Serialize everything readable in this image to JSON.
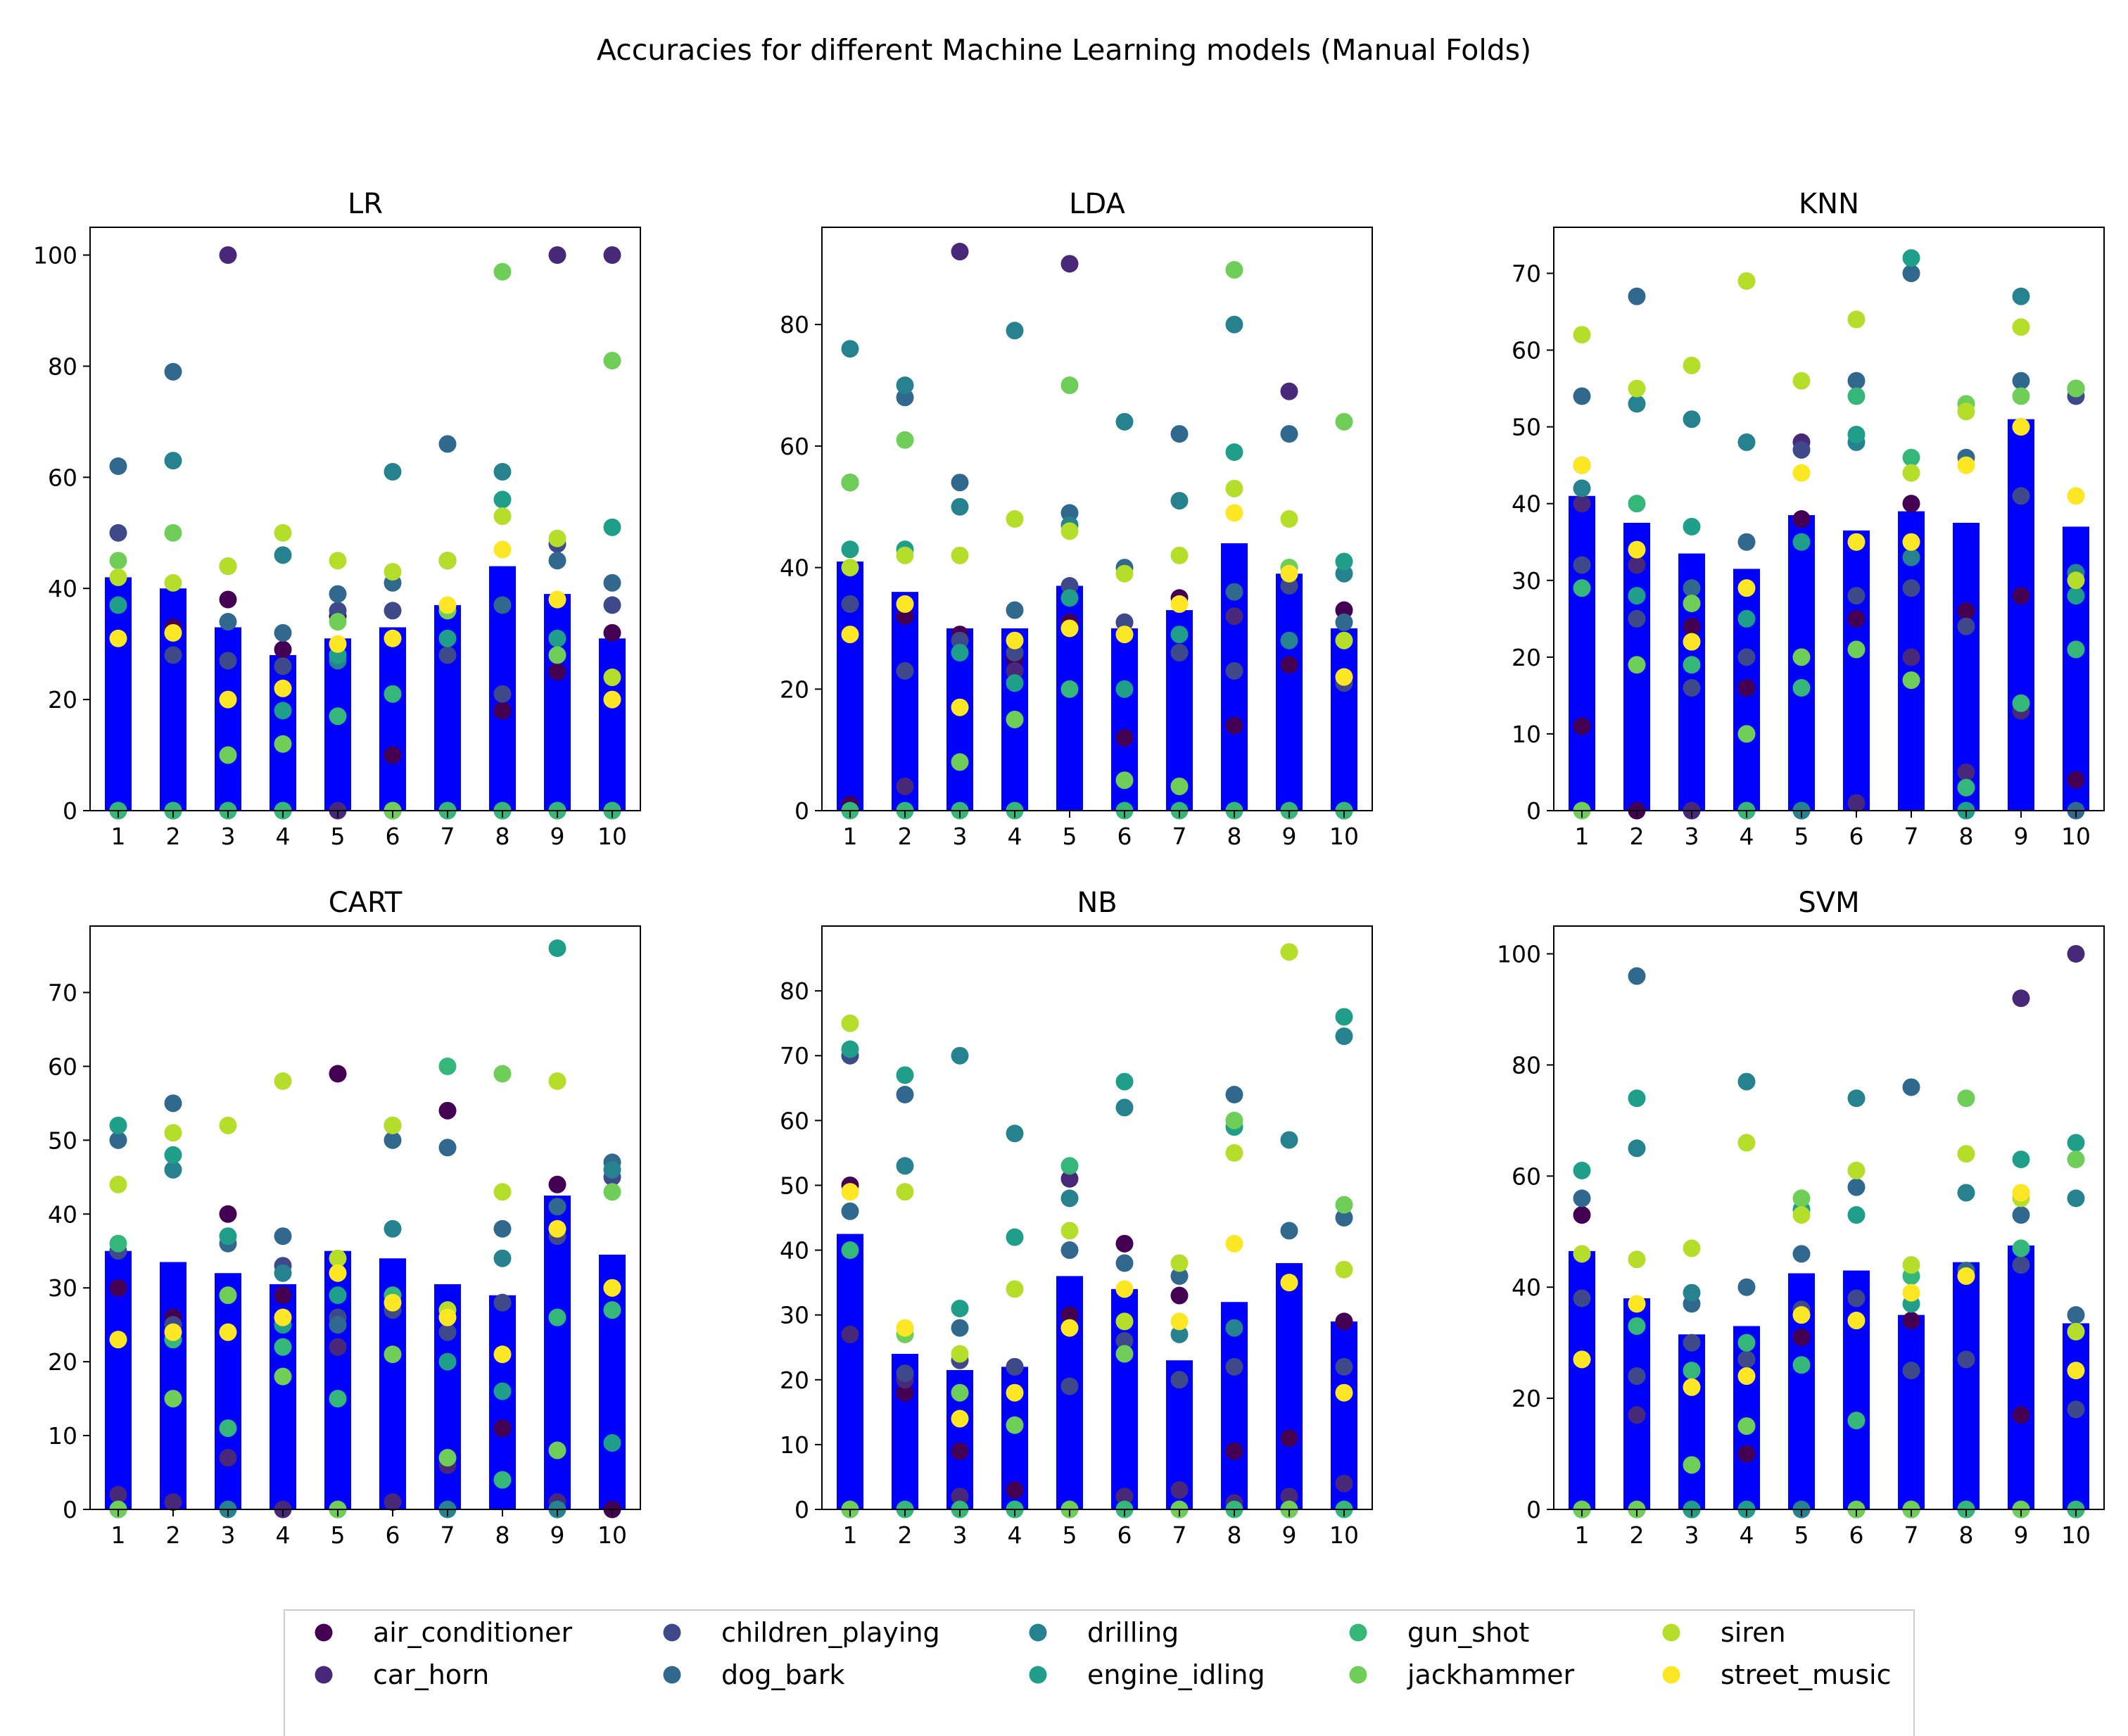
{
  "title": "Accuracies for different Machine Learning models (Manual Folds)",
  "colors": {
    "bar": "#0000ff",
    "air_conditioner": "#440154",
    "car_horn": "#482878",
    "children_playing": "#3e4989",
    "dog_bark": "#31688e",
    "drilling": "#26828e",
    "engine_idling": "#1f9e89",
    "gun_shot": "#35b779",
    "jackhammer": "#6ece58",
    "siren": "#b5de2b",
    "street_music": "#fde725"
  },
  "legend": [
    {
      "key": "air_conditioner",
      "label": "air_conditioner"
    },
    {
      "key": "car_horn",
      "label": "car_horn"
    },
    {
      "key": "children_playing",
      "label": "children_playing"
    },
    {
      "key": "dog_bark",
      "label": "dog_bark"
    },
    {
      "key": "drilling",
      "label": "drilling"
    },
    {
      "key": "engine_idling",
      "label": "engine_idling"
    },
    {
      "key": "gun_shot",
      "label": "gun_shot"
    },
    {
      "key": "jackhammer",
      "label": "jackhammer"
    },
    {
      "key": "siren",
      "label": "siren"
    },
    {
      "key": "street_music",
      "label": "street_music"
    }
  ],
  "chart_data": [
    {
      "type": "bar",
      "title": "LR",
      "categories": [
        "1",
        "2",
        "3",
        "4",
        "5",
        "6",
        "7",
        "8",
        "9",
        "10"
      ],
      "ylim": [
        0,
        105
      ],
      "yticks": [
        0,
        20,
        40,
        60,
        80,
        100
      ],
      "values": [
        42,
        40,
        33,
        28,
        31,
        33,
        37,
        44,
        39,
        31
      ],
      "points": {
        "air_conditioner": [
          37,
          33,
          38,
          29,
          35,
          10,
          45,
          18,
          25,
          32
        ],
        "car_horn": [
          0,
          0,
          100,
          0,
          0,
          0,
          0,
          0,
          100,
          100
        ],
        "children_playing": [
          50,
          28,
          27,
          26,
          36,
          36,
          28,
          21,
          48,
          37
        ],
        "dog_bark": [
          62,
          79,
          34,
          32,
          39,
          41,
          66,
          37,
          45,
          41
        ],
        "drilling": [
          0,
          63,
          44,
          46,
          27,
          61,
          0,
          61,
          0,
          0
        ],
        "engine_idling": [
          37,
          0,
          0,
          18,
          28,
          0,
          31,
          56,
          31,
          51
        ],
        "gun_shot": [
          0,
          0,
          0,
          0,
          17,
          21,
          0,
          0,
          0,
          0
        ],
        "jackhammer": [
          45,
          50,
          10,
          12,
          34,
          0,
          36,
          97,
          28,
          81
        ],
        "siren": [
          42,
          41,
          44,
          50,
          45,
          43,
          45,
          53,
          49,
          24
        ],
        "street_music": [
          31,
          32,
          20,
          22,
          30,
          31,
          37,
          47,
          38,
          20
        ]
      }
    },
    {
      "type": "bar",
      "title": "LDA",
      "categories": [
        "1",
        "2",
        "3",
        "4",
        "5",
        "6",
        "7",
        "8",
        "9",
        "10"
      ],
      "ylim": [
        0,
        96
      ],
      "yticks": [
        0,
        20,
        40,
        60,
        80
      ],
      "values": [
        41,
        36,
        30,
        30,
        37,
        30,
        33,
        44,
        39,
        30
      ],
      "points": {
        "air_conditioner": [
          1,
          32,
          29,
          25,
          31,
          12,
          35,
          14,
          24,
          33
        ],
        "car_horn": [
          54,
          4,
          92,
          23,
          90,
          31,
          26,
          32,
          69,
          0
        ],
        "children_playing": [
          34,
          23,
          28,
          26,
          37,
          31,
          26,
          23,
          37,
          21
        ],
        "dog_bark": [
          54,
          68,
          54,
          33,
          49,
          40,
          62,
          36,
          62,
          31
        ],
        "drilling": [
          76,
          70,
          50,
          79,
          47,
          64,
          51,
          80,
          28,
          39
        ],
        "engine_idling": [
          43,
          43,
          26,
          21,
          35,
          20,
          29,
          59,
          40,
          41
        ],
        "gun_shot": [
          0,
          0,
          0,
          0,
          20,
          0,
          0,
          0,
          0,
          0
        ],
        "jackhammer": [
          54,
          61,
          8,
          15,
          70,
          5,
          4,
          89,
          40,
          64
        ],
        "siren": [
          40,
          42,
          42,
          48,
          46,
          39,
          42,
          53,
          48,
          28
        ],
        "street_music": [
          29,
          34,
          17,
          28,
          30,
          29,
          34,
          49,
          39,
          22
        ]
      }
    },
    {
      "type": "bar",
      "title": "KNN",
      "categories": [
        "1",
        "2",
        "3",
        "4",
        "5",
        "6",
        "7",
        "8",
        "9",
        "10"
      ],
      "ylim": [
        0,
        76
      ],
      "yticks": [
        0,
        10,
        20,
        30,
        40,
        50,
        60,
        70
      ],
      "values": [
        41,
        37.5,
        33.5,
        31.5,
        38.5,
        36.5,
        39,
        37.5,
        51,
        37
      ],
      "points": {
        "air_conditioner": [
          11,
          0,
          24,
          16,
          38,
          25,
          40,
          26,
          28,
          4
        ],
        "car_horn": [
          40,
          32,
          0,
          0,
          48,
          1,
          20,
          5,
          13,
          55
        ],
        "children_playing": [
          32,
          25,
          16,
          20,
          47,
          28,
          29,
          24,
          41,
          54
        ],
        "dog_bark": [
          54,
          67,
          29,
          35,
          0,
          56,
          70,
          46,
          56,
          0
        ],
        "drilling": [
          42,
          53,
          51,
          48,
          0,
          48,
          33,
          0,
          67,
          31
        ],
        "engine_idling": [
          45,
          28,
          37,
          25,
          35,
          49,
          72,
          0,
          50,
          28
        ],
        "gun_shot": [
          29,
          40,
          19,
          0,
          16,
          54,
          46,
          3,
          14,
          21
        ],
        "jackhammer": [
          0,
          19,
          27,
          10,
          20,
          21,
          17,
          53,
          54,
          55
        ],
        "siren": [
          62,
          55,
          58,
          69,
          56,
          64,
          44,
          52,
          63,
          30
        ],
        "street_music": [
          45,
          34,
          22,
          29,
          44,
          35,
          35,
          45,
          50,
          41
        ]
      }
    },
    {
      "type": "bar",
      "title": "CART",
      "categories": [
        "1",
        "2",
        "3",
        "4",
        "5",
        "6",
        "7",
        "8",
        "9",
        "10"
      ],
      "ylim": [
        0,
        79
      ],
      "yticks": [
        0,
        10,
        20,
        30,
        40,
        50,
        60,
        70
      ],
      "values": [
        35,
        33.5,
        32,
        30.5,
        35,
        34,
        30.5,
        29,
        42.5,
        34.5
      ],
      "points": {
        "air_conditioner": [
          30,
          26,
          40,
          29,
          59,
          21,
          54,
          11,
          44,
          0
        ],
        "car_horn": [
          2,
          1,
          7,
          0,
          22,
          1,
          6,
          28,
          1,
          30
        ],
        "children_playing": [
          35,
          25,
          29,
          33,
          26,
          27,
          24,
          28,
          37,
          45
        ],
        "dog_bark": [
          50,
          55,
          36,
          37,
          25,
          50,
          49,
          38,
          41,
          47
        ],
        "drilling": [
          0,
          46,
          0,
          32,
          0,
          38,
          0,
          34,
          0,
          46
        ],
        "engine_idling": [
          52,
          48,
          37,
          25,
          29,
          52,
          20,
          16,
          76,
          9
        ],
        "gun_shot": [
          36,
          23,
          11,
          22,
          15,
          29,
          60,
          4,
          26,
          27
        ],
        "jackhammer": [
          0,
          15,
          29,
          18,
          0,
          21,
          7,
          59,
          8,
          43
        ],
        "siren": [
          44,
          51,
          52,
          58,
          34,
          52,
          27,
          43,
          58,
          30
        ],
        "street_music": [
          23,
          24,
          24,
          26,
          32,
          28,
          26,
          21,
          38,
          30
        ]
      }
    },
    {
      "type": "bar",
      "title": "NB",
      "categories": [
        "1",
        "2",
        "3",
        "4",
        "5",
        "6",
        "7",
        "8",
        "9",
        "10"
      ],
      "ylim": [
        0,
        90
      ],
      "yticks": [
        0,
        10,
        20,
        30,
        40,
        50,
        60,
        70,
        80
      ],
      "values": [
        42.5,
        24,
        21.5,
        22,
        36,
        34,
        23,
        32,
        38,
        29
      ],
      "points": {
        "air_conditioner": [
          50,
          18,
          9,
          3,
          30,
          41,
          33,
          9,
          11,
          29
        ],
        "car_horn": [
          27,
          20,
          2,
          22,
          51,
          2,
          3,
          1,
          2,
          4
        ],
        "children_playing": [
          70,
          21,
          23,
          22,
          19,
          26,
          20,
          22,
          35,
          22
        ],
        "dog_bark": [
          46,
          64,
          28,
          0,
          40,
          38,
          36,
          64,
          43,
          45
        ],
        "drilling": [
          0,
          53,
          70,
          58,
          48,
          62,
          27,
          28,
          57,
          73
        ],
        "engine_idling": [
          71,
          67,
          31,
          42,
          0,
          66,
          0,
          59,
          0,
          76
        ],
        "gun_shot": [
          40,
          0,
          0,
          0,
          53,
          0,
          0,
          0,
          0,
          0
        ],
        "jackhammer": [
          0,
          27,
          18,
          13,
          0,
          24,
          0,
          60,
          0,
          47
        ],
        "siren": [
          75,
          49,
          24,
          34,
          43,
          29,
          38,
          55,
          86,
          37
        ],
        "street_music": [
          49,
          28,
          14,
          18,
          28,
          34,
          29,
          41,
          35,
          18
        ]
      }
    },
    {
      "type": "bar",
      "title": "SVM",
      "categories": [
        "1",
        "2",
        "3",
        "4",
        "5",
        "6",
        "7",
        "8",
        "9",
        "10"
      ],
      "ylim": [
        0,
        105
      ],
      "yticks": [
        0,
        20,
        40,
        60,
        80,
        100
      ],
      "values": [
        46.5,
        38,
        31.5,
        33,
        42.5,
        43,
        35,
        44.5,
        47.5,
        33.5
      ],
      "points": {
        "air_conditioner": [
          53,
          0,
          0,
          10,
          31,
          0,
          34,
          0,
          17,
          0
        ],
        "car_horn": [
          0,
          17,
          0,
          0,
          0,
          0,
          0,
          0,
          92,
          100
        ],
        "children_playing": [
          38,
          24,
          30,
          27,
          36,
          38,
          25,
          27,
          44,
          18
        ],
        "dog_bark": [
          56,
          96,
          37,
          40,
          46,
          58,
          76,
          43,
          53,
          35
        ],
        "drilling": [
          0,
          65,
          39,
          77,
          0,
          74,
          0,
          57,
          0,
          56
        ],
        "engine_idling": [
          61,
          74,
          0,
          0,
          54,
          53,
          37,
          0,
          63,
          66
        ],
        "gun_shot": [
          0,
          33,
          25,
          30,
          26,
          16,
          42,
          0,
          47,
          0
        ],
        "jackhammer": [
          0,
          0,
          8,
          15,
          56,
          0,
          0,
          74,
          0,
          63
        ],
        "siren": [
          46,
          45,
          47,
          66,
          53,
          61,
          44,
          64,
          56,
          32
        ],
        "street_music": [
          27,
          37,
          22,
          24,
          35,
          34,
          39,
          42,
          57,
          25
        ]
      }
    }
  ]
}
